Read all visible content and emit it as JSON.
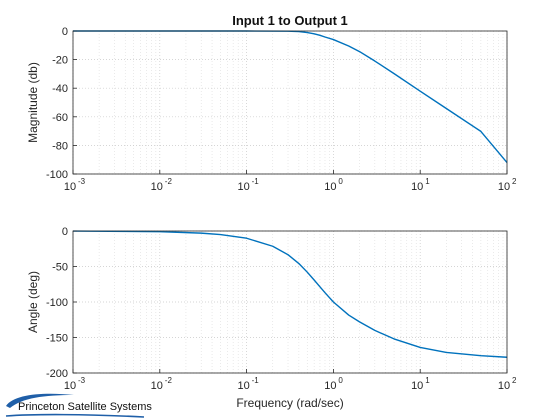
{
  "chart_data": [
    {
      "type": "line",
      "title": "Input 1 to Output 1",
      "xlabel": "",
      "ylabel": "Magnitude (db)",
      "xscale": "log",
      "xlim": [
        0.001,
        100
      ],
      "ylim": [
        -100,
        0
      ],
      "yticks": [
        0,
        -20,
        -40,
        -60,
        -80,
        -100
      ],
      "xtick_exponents": [
        "-3",
        "-2",
        "-1",
        "0",
        "1",
        "2"
      ],
      "grid": true,
      "series": [
        {
          "color": "#0072BD",
          "x": [
            0.001,
            0.01,
            0.1,
            0.3,
            0.4,
            0.5,
            0.6,
            0.7,
            0.8,
            1,
            1.5,
            2,
            3,
            5,
            10,
            20,
            50,
            100
          ],
          "y": [
            0,
            0,
            0,
            -0.1,
            -0.4,
            -1.1,
            -2.0,
            -3.0,
            -4.2,
            -6.0,
            -10.5,
            -14.4,
            -21.0,
            -29.8,
            -42.1,
            -54.2,
            -70.2,
            -92.0
          ]
        }
      ]
    },
    {
      "type": "line",
      "title": "",
      "xlabel": "Frequency (rad/sec)",
      "ylabel": "Angle (deg)",
      "xscale": "log",
      "xlim": [
        0.001,
        100
      ],
      "ylim": [
        -200,
        0
      ],
      "yticks": [
        0,
        -50,
        -100,
        -150,
        -200
      ],
      "xtick_exponents": [
        "-3",
        "-2",
        "-1",
        "0",
        "1",
        "2"
      ],
      "grid": true,
      "series": [
        {
          "color": "#0072BD",
          "x": [
            0.001,
            0.01,
            0.03,
            0.05,
            0.1,
            0.2,
            0.3,
            0.4,
            0.5,
            0.6,
            0.7,
            0.8,
            1,
            1.5,
            2,
            3,
            5,
            10,
            20,
            50,
            100
          ],
          "y": [
            -0.1,
            -1.0,
            -3.0,
            -5.0,
            -10.2,
            -21.5,
            -33.4,
            -45.8,
            -58.0,
            -69.0,
            -78.6,
            -86.9,
            -100.0,
            -118.4,
            -128.0,
            -140.0,
            -152.0,
            -164.0,
            -171.0,
            -175.6,
            -177.8
          ]
        }
      ]
    }
  ],
  "logo": {
    "text": "Princeton Satellite Systems"
  }
}
